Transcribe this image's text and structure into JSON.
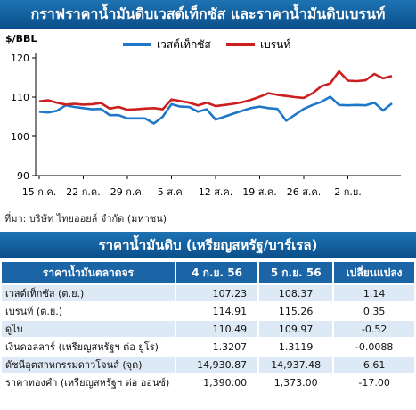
{
  "header": {
    "title": "กราฟราคาน้ำมันดิบเวสต์เท็กซัส และราคาน้ำมันดิบเบรนท์"
  },
  "chart_data": {
    "type": "line",
    "ylabel": "$/BBL",
    "ylim": [
      90,
      120
    ],
    "yticks": [
      90,
      100,
      110,
      120
    ],
    "x_tick_labels": [
      "15 ก.ค.",
      "22 ก.ค.",
      "29 ก.ค.",
      "5 ส.ค.",
      "12 ส.ค.",
      "19 ส.ค.",
      "26 ส.ค.",
      "2 ก.ย."
    ],
    "x_tick_index": [
      0,
      5,
      10,
      15,
      20,
      25,
      30,
      35
    ],
    "colors": {
      "wti": "#1f77c9",
      "brent": "#cc1f1f"
    },
    "legend_position": "top",
    "series": [
      {
        "name": "เวสต์เท็กซัส",
        "values": [
          106.3,
          106.1,
          106.5,
          107.9,
          107.5,
          107.2,
          106.9,
          107.0,
          105.4,
          105.4,
          104.6,
          104.6,
          104.6,
          103.3,
          105.0,
          108.2,
          107.6,
          107.5,
          106.3,
          106.9,
          104.3,
          105.0,
          105.8,
          106.5,
          107.2,
          107.6,
          107.2,
          107.0,
          104.0,
          105.5,
          107.0,
          108.0,
          108.8,
          110.1,
          108.0,
          107.9,
          108.0,
          107.9,
          108.6,
          106.6,
          108.4
        ]
      },
      {
        "name": "เบรนท์",
        "values": [
          108.9,
          109.2,
          108.6,
          108.1,
          108.3,
          108.1,
          108.2,
          108.5,
          107.1,
          107.5,
          106.8,
          106.9,
          107.1,
          107.2,
          106.9,
          109.4,
          109.0,
          108.6,
          107.9,
          108.6,
          107.7,
          108.0,
          108.3,
          108.7,
          109.3,
          110.1,
          111.0,
          110.6,
          110.3,
          110.0,
          109.8,
          111.0,
          112.8,
          113.5,
          116.6,
          114.2,
          114.1,
          114.3,
          115.9,
          114.8,
          115.4
        ]
      }
    ]
  },
  "footer": {
    "source": "ที่มา: บริษัท ไทยออยล์ จำกัด (มหาชน)"
  },
  "section": {
    "title": "ราคาน้ำมันดิบ (เหรียญสหรัฐ/บาร์เรล)"
  },
  "table": {
    "headers": [
      "ราคาน้ำมันตลาดจร",
      "4 ก.ย. 56",
      "5 ก.ย. 56",
      "เปลี่ยนแปลง"
    ],
    "rows": [
      [
        "เวสต์เท็กซัส (ต.ย.)",
        "107.23",
        "108.37",
        "1.14"
      ],
      [
        "เบรนท์ (ต.ย.)",
        "114.91",
        "115.26",
        "0.35"
      ],
      [
        "ดูไบ",
        "110.49",
        "109.97",
        "-0.52"
      ],
      [
        "เงินดอลลาร์ (เหรียญสหรัฐฯ ต่อ ยูโร)",
        "1.3207",
        "1.3119",
        "-0.0088"
      ],
      [
        "ดัชนีอุตสาหกรรมดาวโจนส์ (จุด)",
        "14,930.87",
        "14,937.48",
        "6.61"
      ],
      [
        "ราคาทองคำ (เหรียญสหรัฐฯ ต่อ ออนซ์)",
        "1,390.00",
        "1,373.00",
        "-17.00"
      ]
    ]
  }
}
